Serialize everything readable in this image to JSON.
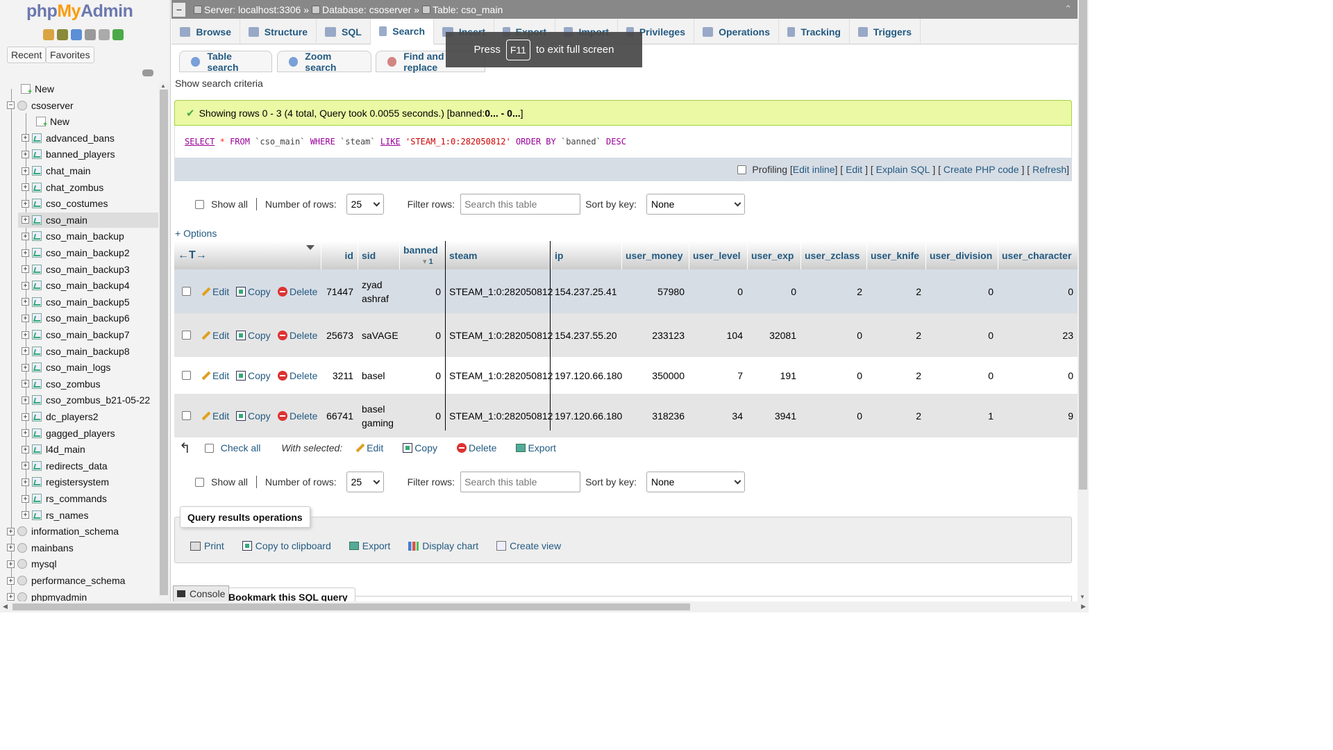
{
  "logo": {
    "php": "php",
    "my": "My",
    "admin": "Admin"
  },
  "sidebar": {
    "recent_tab": "Recent",
    "favorites_tab": "Favorites",
    "new_root": "New",
    "db_name": "csoserver",
    "db_new": "New",
    "tables": [
      "advanced_bans",
      "banned_players",
      "chat_main",
      "chat_zombus",
      "cso_costumes",
      "cso_main",
      "cso_main_backup",
      "cso_main_backup2",
      "cso_main_backup3",
      "cso_main_backup4",
      "cso_main_backup5",
      "cso_main_backup6",
      "cso_main_backup7",
      "cso_main_backup8",
      "cso_main_logs",
      "cso_zombus",
      "cso_zombus_b21-05-22",
      "dc_players2",
      "gagged_players",
      "l4d_main",
      "redirects_data",
      "registersystem",
      "rs_commands",
      "rs_names"
    ],
    "selected_table": "cso_main",
    "other_dbs": [
      "information_schema",
      "mainbans",
      "mysql",
      "performance_schema",
      "phpmyadmin"
    ]
  },
  "breadcrumb": {
    "server": "Server: localhost:3306 »",
    "database": "Database: csoserver »",
    "table": "Table: cso_main"
  },
  "main_tabs": [
    "Browse",
    "Structure",
    "SQL",
    "Search",
    "Insert",
    "Export",
    "Import",
    "Privileges",
    "Operations",
    "Tracking",
    "Triggers"
  ],
  "active_tab": "Search",
  "sub_tabs": [
    "Table search",
    "Zoom search",
    "Find and replace"
  ],
  "fullscreen_notice": {
    "press": "Press",
    "key": "F11",
    "rest": "to exit full screen"
  },
  "show_criteria": "Show search criteria",
  "success": {
    "prefix": "Showing rows 0 - 3 (4 total, Query took 0.0055 seconds.) [banned: ",
    "range": "0... - 0...",
    "suffix": "]"
  },
  "sql": {
    "select": "SELECT",
    "star": "*",
    "from": "FROM",
    "table": "`cso_main`",
    "where": "WHERE",
    "column": "`steam`",
    "like": "LIKE",
    "value": "'STEAM_1:0:282050812'",
    "order_by": "ORDER BY",
    "order_col": "`banned`",
    "desc": "DESC"
  },
  "sql_tools": {
    "profiling": "Profiling",
    "edit_inline": "Edit inline",
    "edit": "Edit",
    "explain": "Explain SQL",
    "php_code": "Create PHP code",
    "refresh": "Refresh"
  },
  "nav": {
    "show_all": "Show all",
    "num_rows_label": "Number of rows:",
    "num_rows_value": "25",
    "filter_label": "Filter rows:",
    "filter_placeholder": "Search this table",
    "sort_label": "Sort by key:",
    "sort_value": "None"
  },
  "options_link": "+ Options",
  "columns": [
    "id",
    "sid",
    "banned",
    "steam",
    "ip",
    "user_money",
    "user_level",
    "user_exp",
    "user_zclass",
    "user_knife",
    "user_division",
    "user_character"
  ],
  "banned_sort_index": "1",
  "row_actions": {
    "edit": "Edit",
    "copy": "Copy",
    "delete": "Delete"
  },
  "rows": [
    {
      "id": "71447",
      "sid": "zyad ashraf",
      "banned": "0",
      "steam": "STEAM_1:0:282050812",
      "ip": "154.237.25.41",
      "user_money": "57980",
      "user_level": "0",
      "user_exp": "0",
      "user_zclass": "2",
      "user_knife": "2",
      "user_division": "0",
      "user_character": "0"
    },
    {
      "id": "25673",
      "sid": "saVAGE",
      "banned": "0",
      "steam": "STEAM_1:0:282050812",
      "ip": "154.237.55.20",
      "user_money": "233123",
      "user_level": "104",
      "user_exp": "32081",
      "user_zclass": "0",
      "user_knife": "2",
      "user_division": "0",
      "user_character": "23"
    },
    {
      "id": "3211",
      "sid": "basel",
      "banned": "0",
      "steam": "STEAM_1:0:282050812",
      "ip": "197.120.66.180",
      "user_money": "350000",
      "user_level": "7",
      "user_exp": "191",
      "user_zclass": "0",
      "user_knife": "2",
      "user_division": "0",
      "user_character": "0"
    },
    {
      "id": "66741",
      "sid": "basel gaming",
      "banned": "0",
      "steam": "STEAM_1:0:282050812",
      "ip": "197.120.66.180",
      "user_money": "318236",
      "user_level": "34",
      "user_exp": "3941",
      "user_zclass": "0",
      "user_knife": "2",
      "user_division": "1",
      "user_character": "9"
    }
  ],
  "with_selected": {
    "check_all": "Check all",
    "label": "With selected:",
    "edit": "Edit",
    "copy": "Copy",
    "delete": "Delete",
    "export": "Export"
  },
  "query_ops": {
    "legend": "Query results operations",
    "print": "Print",
    "copy_clipboard": "Copy to clipboard",
    "export": "Export",
    "display_chart": "Display chart",
    "create_view": "Create view"
  },
  "bookmark_legend": "Bookmark this SQL query",
  "console": "Console"
}
